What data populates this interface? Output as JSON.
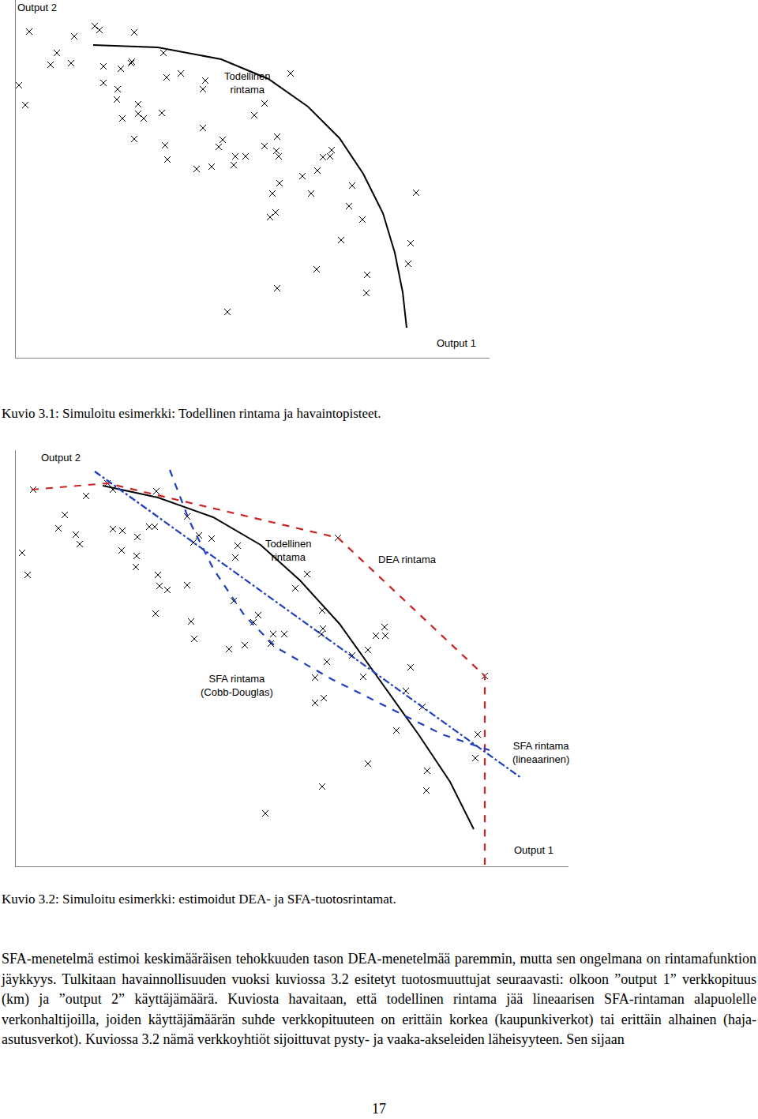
{
  "chart_data": [
    {
      "type": "scatter",
      "xlabel": "Output 1",
      "ylabel": "Output 2",
      "xlim": [
        0,
        600
      ],
      "ylim": [
        0,
        453
      ],
      "xticks": [],
      "yticks": [],
      "tick_labels": false,
      "grid": false,
      "series": [
        {
          "type": "scatter",
          "marker": "x",
          "color": "#000000",
          "x": [
            17,
            74,
            100,
            106,
            150,
            52,
            44,
            70,
            147,
            187,
            111,
            133,
            146,
            209,
            191,
            240,
            4,
            12,
            111,
            129,
            237,
            128,
            155,
            185,
            135,
            162,
            155,
            315,
            302,
            348,
            237,
            150,
            189,
            262,
            257,
            278,
            291,
            192,
            229,
            248,
            276,
            331,
            315,
            330,
            333,
            400,
            398,
            389,
            382,
            363,
            334,
            325,
            374,
            426,
            507,
            422,
            439,
            329,
            322,
            412,
            500,
            497,
            381,
            445,
            444,
            331,
            268
          ],
          "y": [
            413,
            407,
            420,
            415,
            412,
            386,
            371,
            373,
            375,
            386,
            369,
            366,
            373,
            360,
            355,
            351,
            345,
            320,
            348,
            340,
            340,
            327,
            321,
            310,
            303,
            303,
            309,
            322,
            307,
            360,
            291,
            277,
            269,
            276,
            267,
            255,
            255,
            251,
            239,
            242,
            244,
            280,
            268,
            262,
            255,
            263,
            255,
            254,
            237,
            230,
            221,
            208,
            208,
            218,
            209,
            192,
            175,
            184,
            178,
            149,
            145,
            119,
            112,
            105,
            82,
            88,
            58
          ]
        },
        {
          "type": "line",
          "line_style": "solid",
          "color": "#000000",
          "x": [
            98,
            180,
            260,
            320,
            370,
            410,
            440,
            465,
            480,
            490,
            495
          ],
          "y": [
            396,
            393,
            378,
            353,
            318,
            278,
            233,
            183,
            133,
            83,
            38
          ]
        }
      ],
      "annotations": [
        {
          "text": [
            "Todellinen",
            "rintama"
          ],
          "x": 293,
          "y": 348
        }
      ],
      "caption": "Kuvio 3.1: Simuloitu esimerkki: Todellinen rintama ja havaintopisteet."
    },
    {
      "type": "scatter",
      "xlabel": "Output 1",
      "ylabel": "Output 2",
      "xlim": [
        0,
        700
      ],
      "ylim": [
        0,
        527
      ],
      "xticks": [],
      "yticks": [],
      "tick_labels": false,
      "grid": false,
      "series": [
        {
          "type": "scatter",
          "marker": "x",
          "color": "#000000",
          "x": [
            22,
            89,
            116,
            123,
            178,
            62,
            54,
            76,
            123,
            135,
            154,
            169,
            176,
            217,
            232,
            248,
            8,
            15,
            81,
            134,
            153,
            225,
            281,
            278,
            408,
            152,
            180,
            182,
            192,
            217,
            369,
            354,
            177,
            222,
            276,
            226,
            270,
            290,
            301,
            307,
            323,
            326,
            340,
            388,
            389,
            387,
            456,
            468,
            467,
            446,
            426,
            394,
            379,
            440,
            500,
            494,
            515,
            390,
            379,
            482,
            594,
            585,
            582,
            446,
            521,
            520,
            388,
            316
          ],
          "y": [
            477,
            469,
            485,
            477,
            475,
            445,
            428,
            420,
            427,
            425,
            417,
            430,
            430,
            443,
            419,
            415,
            397,
            369,
            408,
            400,
            393,
            410,
            406,
            391,
            416,
            379,
            369,
            355,
            350,
            356,
            370,
            352,
            320,
            310,
            336,
            288,
            275,
            280,
            309,
            318,
            282,
            294,
            294,
            324,
            301,
            294,
            292,
            292,
            303,
            274,
            267,
            259,
            239,
            240,
            252,
            222,
            202,
            213,
            207,
            172,
            241,
            167,
            137,
            130,
            121,
            96,
            101,
            67
          ]
        },
        {
          "type": "line",
          "line_style": "solid",
          "color": "#000000",
          "x": [
            110,
            180,
            250,
            310,
            360,
            410,
            460,
            510,
            550,
            580
          ],
          "y": [
            482,
            467,
            442,
            407,
            362,
            307,
            237,
            167,
            107,
            47
          ]
        },
        {
          "type": "line",
          "line_style": "dash",
          "color": "#cc2222",
          "x": [
            20,
            116,
            408,
            594,
            594
          ],
          "y": [
            477,
            485,
            416,
            241,
            2
          ]
        },
        {
          "type": "line",
          "line_style": "dashdot",
          "color": "#1f3fbf",
          "x": [
            100,
            640
          ],
          "y": [
            500,
            112
          ]
        },
        {
          "type": "line",
          "line_style": "dash",
          "color": "#1f3fbf",
          "x": [
            195,
            220,
            250,
            290,
            330,
            400,
            480,
            540,
            600
          ],
          "y": [
            502,
            437,
            377,
            317,
            277,
            237,
            197,
            167,
            147
          ]
        }
      ],
      "annotations": [
        {
          "text": [
            "Todellinen",
            "rintama"
          ],
          "x": 345,
          "y": 400
        },
        {
          "text": [
            "DEA rintama"
          ],
          "x": 496,
          "y": 389
        },
        {
          "text": [
            "SFA rintama",
            "(Cobb-Douglas)"
          ],
          "x": 280,
          "y": 229
        },
        {
          "text": [
            "SFA rintama",
            "(lineaarinen)"
          ],
          "x": 665,
          "y": 144
        }
      ],
      "caption": "Kuvio 3.2: Simuloitu esimerkki: estimoidut DEA- ja SFA-tuotosrintamat."
    }
  ],
  "body": "SFA-menetelmä estimoi keskimääräisen tehokkuuden tason DEA-menetelmää paremmin, mutta sen ongelmana on rintamafunktion jäykkyys. Tulkitaan havainnollisuuden vuoksi kuviossa 3.2 esitetyt tuotosmuuttujat seuraavasti: olkoon ”output 1” verkkopituus (km) ja ”output 2” käyttäjämäärä. Kuviosta havaitaan, että todellinen rintama jää lineaarisen SFA-rintaman alapuolelle verkonhaltijoilla, joiden käyttäjämäärän suhde verkkopituuteen on erittäin korkea (kaupunkiverkot) tai erittäin alhainen (haja-asutusverkot). Kuviossa 3.2 nämä verkkoyhtiöt sijoittuvat pysty- ja vaaka-akseleiden läheisyyteen. Sen sijaan",
  "page_number": "17"
}
